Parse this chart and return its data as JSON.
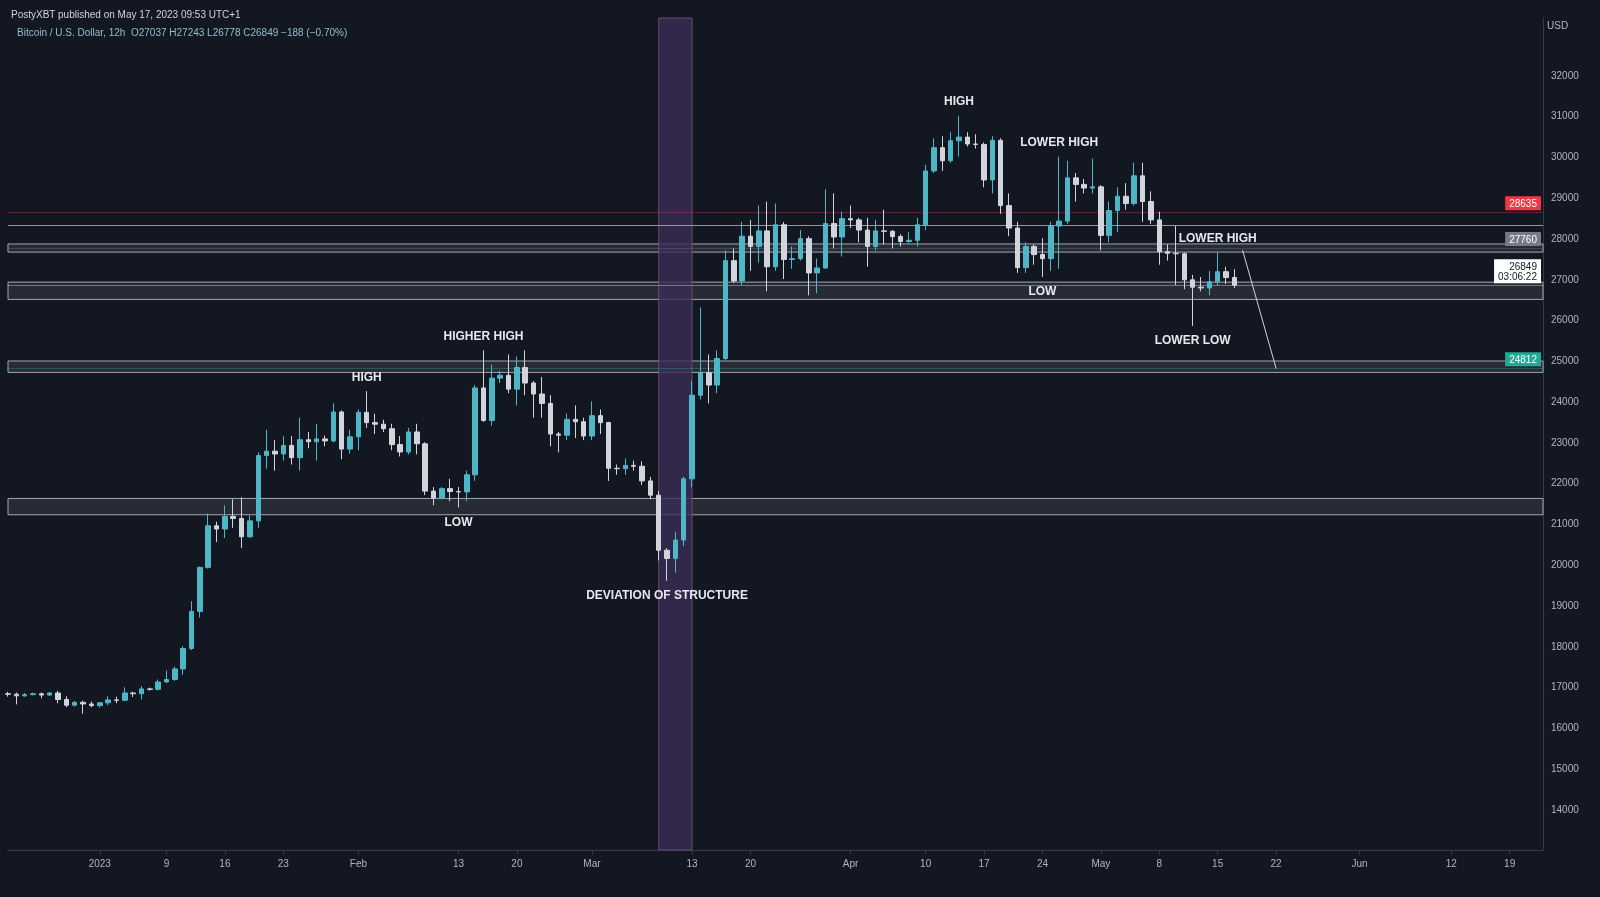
{
  "chart_data": {
    "type": "candlestick",
    "title": "PostyXBT published on May 17, 2023 09:53 UTC+1",
    "subtitle": "Bitcoin / U.S. Dollar, 12h  O27037 H27243 L26778 C26849 −188 (−0.70%)",
    "ylabel": "USD",
    "x": [
      "2022-12-21",
      "2022-12-22",
      "2022-12-23",
      "2022-12-24",
      "2022-12-25",
      "2022-12-26",
      "2022-12-27",
      "2022-12-28",
      "2022-12-29",
      "2022-12-30",
      "2022-12-31",
      "2023-01-01",
      "2023-01-02",
      "2023-01-03",
      "2023-01-04",
      "2023-01-05",
      "2023-01-06",
      "2023-01-07",
      "2023-01-08",
      "2023-01-09",
      "2023-01-10",
      "2023-01-11",
      "2023-01-12",
      "2023-01-13",
      "2023-01-14",
      "2023-01-15",
      "2023-01-16",
      "2023-01-17",
      "2023-01-18",
      "2023-01-19",
      "2023-01-20",
      "2023-01-21",
      "2023-01-22",
      "2023-01-23",
      "2023-01-24",
      "2023-01-25",
      "2023-01-26",
      "2023-01-27",
      "2023-01-28",
      "2023-01-29",
      "2023-01-30",
      "2023-01-31",
      "2023-02-01",
      "2023-02-02",
      "2023-02-03",
      "2023-02-04",
      "2023-02-05",
      "2023-02-06",
      "2023-02-07",
      "2023-02-08",
      "2023-02-09",
      "2023-02-10",
      "2023-02-11",
      "2023-02-12",
      "2023-02-13",
      "2023-02-14",
      "2023-02-15",
      "2023-02-16",
      "2023-02-17",
      "2023-02-18",
      "2023-02-19",
      "2023-02-20",
      "2023-02-21",
      "2023-02-22",
      "2023-02-23",
      "2023-02-24",
      "2023-02-25",
      "2023-02-26",
      "2023-02-27",
      "2023-02-28",
      "2023-03-01",
      "2023-03-02",
      "2023-03-03",
      "2023-03-04",
      "2023-03-05",
      "2023-03-06",
      "2023-03-07",
      "2023-03-08",
      "2023-03-09",
      "2023-03-10",
      "2023-03-11",
      "2023-03-12",
      "2023-03-13",
      "2023-03-14",
      "2023-03-15",
      "2023-03-16",
      "2023-03-17",
      "2023-03-18",
      "2023-03-19",
      "2023-03-20",
      "2023-03-21",
      "2023-03-22",
      "2023-03-23",
      "2023-03-24",
      "2023-03-25",
      "2023-03-26",
      "2023-03-27",
      "2023-03-28",
      "2023-03-29",
      "2023-03-30",
      "2023-03-31",
      "2023-04-01",
      "2023-04-02",
      "2023-04-03",
      "2023-04-04",
      "2023-04-05",
      "2023-04-06",
      "2023-04-07",
      "2023-04-08",
      "2023-04-09",
      "2023-04-10",
      "2023-04-11",
      "2023-04-12",
      "2023-04-13",
      "2023-04-14",
      "2023-04-15",
      "2023-04-16",
      "2023-04-17",
      "2023-04-18",
      "2023-04-19",
      "2023-04-20",
      "2023-04-21",
      "2023-04-22",
      "2023-04-23",
      "2023-04-24",
      "2023-04-25",
      "2023-04-26",
      "2023-04-27",
      "2023-04-28",
      "2023-04-29",
      "2023-04-30",
      "2023-05-01",
      "2023-05-02",
      "2023-05-03",
      "2023-05-04",
      "2023-05-05",
      "2023-05-06",
      "2023-05-07",
      "2023-05-08",
      "2023-05-09",
      "2023-05-10",
      "2023-05-11",
      "2023-05-12",
      "2023-05-13",
      "2023-05-14",
      "2023-05-15",
      "2023-05-16",
      "2023-05-17"
    ],
    "ohlc": [
      [
        16830,
        16880,
        16760,
        16820
      ],
      [
        16820,
        16860,
        16570,
        16780
      ],
      [
        16780,
        16850,
        16760,
        16810
      ],
      [
        16810,
        16860,
        16790,
        16830
      ],
      [
        16830,
        16860,
        16720,
        16800
      ],
      [
        16800,
        16870,
        16780,
        16850
      ],
      [
        16850,
        16900,
        16600,
        16690
      ],
      [
        16690,
        16770,
        16500,
        16550
      ],
      [
        16550,
        16650,
        16520,
        16620
      ],
      [
        16620,
        16660,
        16340,
        16580
      ],
      [
        16580,
        16640,
        16500,
        16540
      ],
      [
        16540,
        16630,
        16490,
        16610
      ],
      [
        16610,
        16770,
        16550,
        16680
      ],
      [
        16680,
        16760,
        16600,
        16670
      ],
      [
        16670,
        16990,
        16650,
        16850
      ],
      [
        16850,
        16880,
        16750,
        16830
      ],
      [
        16830,
        17020,
        16690,
        16950
      ],
      [
        16950,
        16980,
        16910,
        16940
      ],
      [
        16940,
        17180,
        16910,
        17120
      ],
      [
        17120,
        17400,
        17100,
        17180
      ],
      [
        17180,
        17500,
        17150,
        17440
      ],
      [
        17440,
        18000,
        17300,
        17940
      ],
      [
        17940,
        19100,
        17900,
        18850
      ],
      [
        18850,
        19950,
        18700,
        19930
      ],
      [
        19930,
        21250,
        19900,
        20950
      ],
      [
        20950,
        21050,
        20550,
        20870
      ],
      [
        20870,
        21450,
        20650,
        21180
      ],
      [
        21180,
        21600,
        20900,
        21130
      ],
      [
        21130,
        21650,
        20400,
        20680
      ],
      [
        20680,
        21200,
        20650,
        21070
      ],
      [
        21070,
        22750,
        20900,
        22670
      ],
      [
        22670,
        23300,
        22350,
        22780
      ],
      [
        22780,
        23050,
        22300,
        22710
      ],
      [
        22710,
        23150,
        22550,
        22920
      ],
      [
        22920,
        23150,
        22450,
        22620
      ],
      [
        22620,
        23600,
        22300,
        23060
      ],
      [
        23060,
        23250,
        22850,
        23010
      ],
      [
        23010,
        23450,
        22550,
        23080
      ],
      [
        23080,
        23160,
        22900,
        23030
      ],
      [
        23030,
        23950,
        22990,
        23740
      ],
      [
        23740,
        23780,
        22580,
        22830
      ],
      [
        22830,
        23300,
        22720,
        23130
      ],
      [
        23130,
        23800,
        22800,
        23730
      ],
      [
        23730,
        24250,
        23350,
        23480
      ],
      [
        23480,
        23700,
        23200,
        23440
      ],
      [
        23440,
        23550,
        23250,
        23330
      ],
      [
        23330,
        23450,
        22800,
        22940
      ],
      [
        22940,
        23150,
        22650,
        22760
      ],
      [
        22760,
        23350,
        22700,
        23250
      ],
      [
        23250,
        23450,
        22700,
        22960
      ],
      [
        22960,
        23000,
        21700,
        21800
      ],
      [
        21800,
        21900,
        21450,
        21630
      ],
      [
        21630,
        21900,
        21600,
        21860
      ],
      [
        21860,
        22100,
        21550,
        21790
      ],
      [
        21790,
        21900,
        21400,
        21780
      ],
      [
        21780,
        22300,
        21550,
        22200
      ],
      [
        22200,
        24400,
        22050,
        24330
      ],
      [
        24330,
        25250,
        23500,
        23530
      ],
      [
        23530,
        24900,
        23400,
        24570
      ],
      [
        24570,
        24750,
        24450,
        24640
      ],
      [
        24640,
        25150,
        24200,
        24300
      ],
      [
        24300,
        25100,
        23900,
        24830
      ],
      [
        24830,
        25250,
        24150,
        24450
      ],
      [
        24450,
        24500,
        23600,
        24180
      ],
      [
        24180,
        24600,
        23600,
        23950
      ],
      [
        23950,
        24150,
        22900,
        23200
      ],
      [
        23200,
        23250,
        22750,
        23170
      ],
      [
        23170,
        23700,
        23050,
        23560
      ],
      [
        23560,
        23900,
        23100,
        23500
      ],
      [
        23500,
        23600,
        23050,
        23150
      ],
      [
        23150,
        24000,
        23050,
        23650
      ],
      [
        23650,
        23800,
        23200,
        23480
      ],
      [
        23480,
        23500,
        22050,
        22360
      ],
      [
        22360,
        22450,
        22200,
        22350
      ],
      [
        22350,
        22600,
        22200,
        22430
      ],
      [
        22430,
        22550,
        22300,
        22410
      ],
      [
        22410,
        22530,
        21950,
        22050
      ],
      [
        22050,
        22150,
        21600,
        21700
      ],
      [
        21700,
        21800,
        20100,
        20350
      ],
      [
        20350,
        20400,
        19600,
        20150
      ],
      [
        20150,
        20800,
        19800,
        20600
      ],
      [
        20600,
        22150,
        20450,
        22100
      ],
      [
        22100,
        24500,
        21900,
        24150
      ],
      [
        24150,
        26300,
        24050,
        24700
      ],
      [
        24700,
        25150,
        23950,
        24400
      ],
      [
        24400,
        25250,
        24200,
        25050
      ],
      [
        25050,
        27700,
        25000,
        27450
      ],
      [
        27450,
        27750,
        26900,
        26950
      ],
      [
        26950,
        28400,
        26850,
        28050
      ],
      [
        28050,
        28450,
        27200,
        27800
      ],
      [
        27800,
        28800,
        27400,
        28180
      ],
      [
        28180,
        28900,
        26700,
        27300
      ],
      [
        27300,
        28850,
        27200,
        28330
      ],
      [
        28330,
        28400,
        27000,
        27480
      ],
      [
        27480,
        27800,
        27250,
        27500
      ],
      [
        27500,
        28200,
        27450,
        27990
      ],
      [
        27990,
        28050,
        26600,
        27150
      ],
      [
        27150,
        27500,
        26650,
        27270
      ],
      [
        27270,
        29200,
        27250,
        28360
      ],
      [
        28360,
        29100,
        27750,
        28030
      ],
      [
        28030,
        28650,
        27550,
        28480
      ],
      [
        28480,
        28800,
        28250,
        28450
      ],
      [
        28450,
        28500,
        27900,
        28200
      ],
      [
        28200,
        28500,
        27300,
        27800
      ],
      [
        27800,
        28450,
        27700,
        28180
      ],
      [
        28180,
        28700,
        27850,
        28170
      ],
      [
        28170,
        28200,
        27750,
        28040
      ],
      [
        28040,
        28100,
        27800,
        27920
      ],
      [
        27920,
        28150,
        27880,
        27950
      ],
      [
        27950,
        28500,
        27800,
        28330
      ],
      [
        28330,
        29800,
        28200,
        29650
      ],
      [
        29650,
        30450,
        29600,
        30220
      ],
      [
        30220,
        30500,
        29650,
        29900
      ],
      [
        29900,
        30600,
        29850,
        30390
      ],
      [
        30390,
        31000,
        30000,
        30480
      ],
      [
        30480,
        30600,
        30250,
        30310
      ],
      [
        30310,
        30550,
        30200,
        30300
      ],
      [
        30300,
        30350,
        29250,
        29430
      ],
      [
        29430,
        30500,
        29100,
        30400
      ],
      [
        30400,
        30450,
        28600,
        28800
      ],
      [
        28800,
        29100,
        28050,
        28250
      ],
      [
        28250,
        28400,
        27150,
        27280
      ],
      [
        27280,
        27900,
        27150,
        27800
      ],
      [
        27800,
        27850,
        27350,
        27600
      ],
      [
        27600,
        28000,
        27050,
        27500
      ],
      [
        27500,
        28400,
        27200,
        28300
      ],
      [
        28300,
        30000,
        27250,
        28420
      ],
      [
        28420,
        29900,
        28350,
        29480
      ],
      [
        29480,
        29600,
        28900,
        29320
      ],
      [
        29320,
        29450,
        29100,
        29230
      ],
      [
        29230,
        29950,
        29100,
        29260
      ],
      [
        29260,
        29300,
        27700,
        28070
      ],
      [
        28070,
        28900,
        27900,
        28680
      ],
      [
        28680,
        29250,
        28150,
        29030
      ],
      [
        29030,
        29350,
        28700,
        28850
      ],
      [
        28850,
        29850,
        28800,
        29530
      ],
      [
        29530,
        29850,
        28400,
        28900
      ],
      [
        28900,
        29150,
        28350,
        28450
      ],
      [
        28450,
        28650,
        27350,
        27670
      ],
      [
        27670,
        27850,
        27450,
        27630
      ],
      [
        27630,
        28300,
        26850,
        27620
      ],
      [
        27620,
        27650,
        26750,
        26980
      ],
      [
        26980,
        27100,
        25850,
        26800
      ],
      [
        26800,
        27050,
        26700,
        26780
      ],
      [
        26780,
        27200,
        26600,
        26930
      ],
      [
        26930,
        27650,
        26850,
        27180
      ],
      [
        27180,
        27300,
        26880,
        27037
      ],
      [
        27037,
        27243,
        26778,
        26849
      ]
    ],
    "colors": [
      "#d1d4dc",
      "#d1d4dc",
      "#4fb6c6",
      "#4fb6c6",
      "#d1d4dc",
      "#4fb6c6",
      "#d1d4dc",
      "#d1d4dc",
      "#4fb6c6",
      "#d1d4dc",
      "#d1d4dc",
      "#4fb6c6",
      "#4fb6c6",
      "#d1d4dc",
      "#4fb6c6",
      "#d1d4dc",
      "#4fb6c6",
      "#d1d4dc",
      "#4fb6c6",
      "#4fb6c6",
      "#4fb6c6",
      "#4fb6c6",
      "#4fb6c6",
      "#4fb6c6",
      "#4fb6c6",
      "#d1d4dc",
      "#4fb6c6",
      "#d1d4dc",
      "#d1d4dc",
      "#4fb6c6",
      "#4fb6c6",
      "#4fb6c6",
      "#d1d4dc",
      "#4fb6c6",
      "#d1d4dc",
      "#4fb6c6",
      "#d1d4dc",
      "#4fb6c6",
      "#d1d4dc",
      "#4fb6c6",
      "#d1d4dc",
      "#4fb6c6",
      "#4fb6c6",
      "#d1d4dc",
      "#d1d4dc",
      "#d1d4dc",
      "#d1d4dc",
      "#d1d4dc",
      "#4fb6c6",
      "#d1d4dc",
      "#d1d4dc",
      "#d1d4dc",
      "#4fb6c6",
      "#d1d4dc",
      "#d1d4dc",
      "#4fb6c6",
      "#4fb6c6",
      "#d1d4dc",
      "#4fb6c6",
      "#4fb6c6",
      "#d1d4dc",
      "#4fb6c6",
      "#d1d4dc",
      "#d1d4dc",
      "#d1d4dc",
      "#d1d4dc",
      "#d1d4dc",
      "#4fb6c6",
      "#d1d4dc",
      "#d1d4dc",
      "#4fb6c6",
      "#d1d4dc",
      "#d1d4dc",
      "#d1d4dc",
      "#4fb6c6",
      "#d1d4dc",
      "#d1d4dc",
      "#d1d4dc",
      "#d1d4dc",
      "#d1d4dc",
      "#4fb6c6",
      "#4fb6c6",
      "#4fb6c6",
      "#4fb6c6",
      "#d1d4dc",
      "#4fb6c6",
      "#4fb6c6",
      "#d1d4dc",
      "#4fb6c6",
      "#d1d4dc",
      "#4fb6c6",
      "#d1d4dc",
      "#4fb6c6",
      "#d1d4dc",
      "#4fb6c6",
      "#4fb6c6",
      "#d1d4dc",
      "#4fb6c6",
      "#4fb6c6",
      "#d1d4dc",
      "#4fb6c6",
      "#d1d4dc",
      "#d1d4dc",
      "#d1d4dc",
      "#4fb6c6",
      "#d1d4dc",
      "#d1d4dc",
      "#d1d4dc",
      "#4fb6c6",
      "#4fb6c6",
      "#4fb6c6",
      "#4fb6c6",
      "#d1d4dc",
      "#4fb6c6",
      "#4fb6c6",
      "#d1d4dc",
      "#d1d4dc",
      "#d1d4dc",
      "#4fb6c6",
      "#d1d4dc",
      "#d1d4dc",
      "#d1d4dc",
      "#4fb6c6",
      "#d1d4dc",
      "#d1d4dc",
      "#4fb6c6",
      "#4fb6c6",
      "#4fb6c6",
      "#d1d4dc",
      "#d1d4dc",
      "#4fb6c6",
      "#d1d4dc",
      "#4fb6c6",
      "#4fb6c6",
      "#d1d4dc",
      "#4fb6c6",
      "#d1d4dc",
      "#d1d4dc",
      "#d1d4dc",
      "#d1d4dc",
      "#d1d4dc",
      "#d1d4dc",
      "#d1d4dc",
      "#d1d4dc",
      "#4fb6c6",
      "#4fb6c6",
      "#d1d4dc",
      "#d1d4dc"
    ],
    "series": [
      {
        "type": "line",
        "color": "#d1d4dc",
        "x": [
          "2023-05-18",
          "2023-05-22"
        ],
        "values": [
          27700,
          24812
        ]
      }
    ],
    "xlim": [
      "2022-12-21",
      "2023-06-23"
    ],
    "xticks": [
      {
        "value": "2023-01-01",
        "label": "2023"
      },
      {
        "value": "2023-01-09",
        "label": "9"
      },
      {
        "value": "2023-01-16",
        "label": "16"
      },
      {
        "value": "2023-01-23",
        "label": "23"
      },
      {
        "value": "2023-02-01",
        "label": "Feb"
      },
      {
        "value": "2023-02-13",
        "label": "13"
      },
      {
        "value": "2023-02-20",
        "label": "20"
      },
      {
        "value": "2023-03-01",
        "label": "Mar"
      },
      {
        "value": "2023-03-13",
        "label": "13"
      },
      {
        "value": "2023-03-20",
        "label": "20"
      },
      {
        "value": "2023-04-01",
        "label": "Apr"
      },
      {
        "value": "2023-04-10",
        "label": "10"
      },
      {
        "value": "2023-04-17",
        "label": "17"
      },
      {
        "value": "2023-04-24",
        "label": "24"
      },
      {
        "value": "2023-05-01",
        "label": "May"
      },
      {
        "value": "2023-05-08",
        "label": "8"
      },
      {
        "value": "2023-05-15",
        "label": "15"
      },
      {
        "value": "2023-05-22",
        "label": "22"
      },
      {
        "value": "2023-06-01",
        "label": "Jun"
      },
      {
        "value": "2023-06-12",
        "label": "12"
      },
      {
        "value": "2023-06-19",
        "label": "19"
      }
    ],
    "ylim": [
      13000,
      33400
    ],
    "yticks": [
      14000,
      15000,
      16000,
      17000,
      18000,
      19000,
      20000,
      21000,
      22000,
      23000,
      24000,
      25000,
      26000,
      27000,
      28000,
      29000,
      30000,
      31000,
      32000
    ],
    "bands": [
      {
        "axis": "y",
        "from": 21220,
        "to": 21620,
        "color": "#2a2e39"
      },
      {
        "axis": "y",
        "from": 24710,
        "to": 24990,
        "color": "#2a2e39"
      },
      {
        "axis": "y",
        "from": 26500,
        "to": 26925,
        "color": "#2a2e39"
      },
      {
        "axis": "y",
        "from": 27660,
        "to": 27860,
        "color": "#2a2e39"
      },
      {
        "axis": "x",
        "from": "2023-03-09",
        "to": "2023-03-13",
        "color": "#3b2d55"
      }
    ],
    "ref_lines": [
      {
        "axis": "y",
        "value": 28310,
        "color": "#9598a1"
      },
      {
        "axis": "y",
        "value": 28635,
        "label": "28635",
        "color": "#f23645"
      },
      {
        "axis": "y",
        "value": 27760,
        "label": "27760",
        "color": "#787b86"
      },
      {
        "axis": "y",
        "value": 24812,
        "label": "24812",
        "color": "#22ab94"
      },
      {
        "axis": "y",
        "value": 26849,
        "label": "26849\n03:06:22",
        "color": "#ffffff"
      }
    ],
    "annotations": [
      {
        "text": "HIGH",
        "x": "2023-02-02",
        "y": 24250
      },
      {
        "text": "HIGHER HIGH",
        "x": "2023-02-16",
        "y": 25250
      },
      {
        "text": "LOW",
        "x": "2023-02-13",
        "y": 21400
      },
      {
        "text": "DEVIATION OF STRUCTURE",
        "x": "2023-03-10",
        "y": 19600
      },
      {
        "text": "HIGH",
        "x": "2023-04-14",
        "y": 31000
      },
      {
        "text": "LOWER HIGH",
        "x": "2023-04-26",
        "y": 30000
      },
      {
        "text": "LOW",
        "x": "2023-04-24",
        "y": 27050
      },
      {
        "text": "LOWER HIGH",
        "x": "2023-05-15",
        "y": 27650
      },
      {
        "text": "LOWER LOW",
        "x": "2023-05-12",
        "y": 25850
      }
    ],
    "grid": false,
    "marker": "none",
    "line_style": "solid"
  }
}
